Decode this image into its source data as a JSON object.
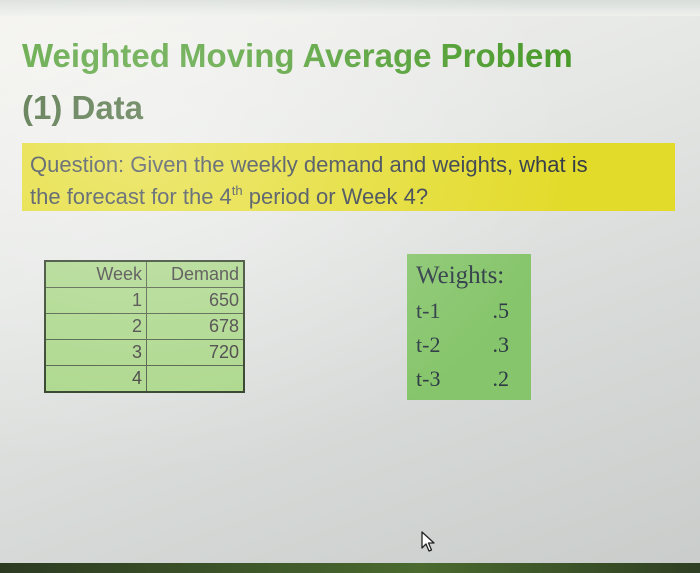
{
  "slide": {
    "title_line1": "Weighted Moving Average Problem",
    "title_line2": "(1) Data",
    "question": {
      "line1": "Question: Given the weekly demand and weights, what is",
      "line2_before": "the forecast for the 4",
      "line2_sup": "th",
      "line2_after": " period or Week 4?"
    },
    "table": {
      "headers": [
        "Week",
        "Demand"
      ],
      "rows": [
        [
          "1",
          "650"
        ],
        [
          "2",
          "678"
        ],
        [
          "3",
          "720"
        ],
        [
          "4",
          ""
        ]
      ]
    },
    "weights": {
      "title": "Weights:",
      "items": [
        {
          "label": "t-1",
          "value": ".5"
        },
        {
          "label": "t-2",
          "value": ".3"
        },
        {
          "label": "t-3",
          "value": ".2"
        }
      ]
    }
  },
  "colors": {
    "title_green": "#4b9b2c",
    "question_yellow": "#e3db2a",
    "table_green": "#a9d687",
    "weights_green": "#86c56b"
  },
  "icons": {
    "cursor": "mouse-pointer-icon"
  }
}
